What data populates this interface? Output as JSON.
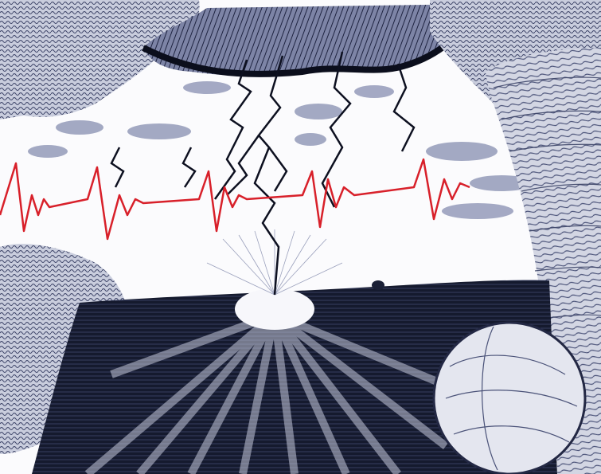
{
  "artwork": {
    "palette": {
      "paper": "#fbfbfd",
      "ink": "#101322",
      "shade": "#525a7f",
      "shade_light": "#9aa0bc",
      "ekg": "#d8202a"
    }
  }
}
